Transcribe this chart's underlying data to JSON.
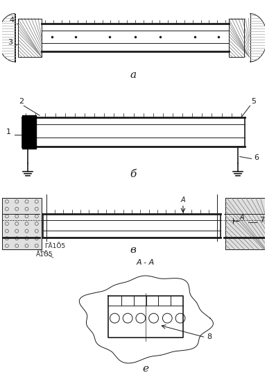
{
  "bg_color": "#ffffff",
  "lc": "#1a1a1a",
  "fig_w": 3.85,
  "fig_h": 5.5,
  "dpi": 100,
  "labels": {
    "a": "а",
    "b": "б",
    "v": "в",
    "1": "1",
    "2": "2",
    "3": "3",
    "4": "4",
    "5": "5",
    "6": "6",
    "7": "7",
    "8": "8",
    "AA": "А - А",
    "Arr": "А",
    "dim1": "ГĂ1Õ5",
    "dim2": "Ă1Õ5",
    "e_label": "е"
  }
}
